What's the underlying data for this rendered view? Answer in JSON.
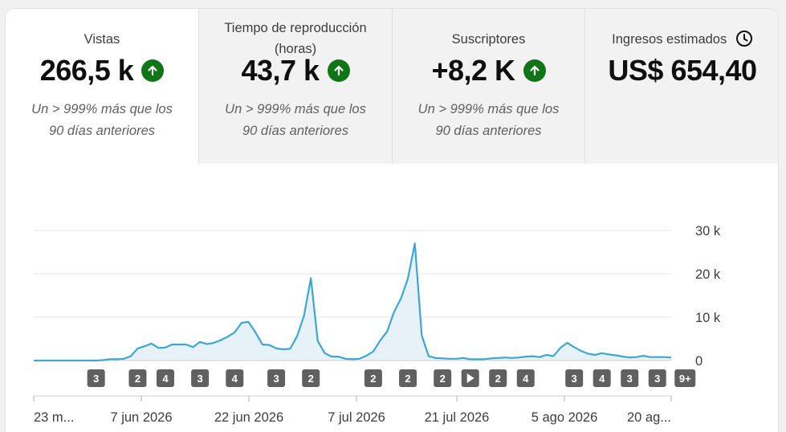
{
  "metrics": [
    {
      "label": "Vistas",
      "value": "266,5 k",
      "comparison": "Un > 999% más que los 90 días anteriores",
      "comparison_line1": "Un > 999% más que los",
      "comparison_line2": "90 días anteriores",
      "trend_icon": "arrow-up-icon"
    },
    {
      "label_line1": "Tiempo de reproducción",
      "label_line2": "(horas)",
      "value": "43,7 k",
      "comparison_line1": "Un > 999% más que los",
      "comparison_line2": "90 días anteriores",
      "trend_icon": "arrow-up-icon"
    },
    {
      "label": "Suscriptores",
      "value": "+8,2 K",
      "comparison_line1": "Un > 999% más que los",
      "comparison_line2": "90 días anteriores",
      "trend_icon": "arrow-up-icon"
    },
    {
      "label": "Ingresos estimados",
      "value": "US$ 654,40",
      "info_icon": "clock-icon"
    }
  ],
  "colors": {
    "line": "#3ea6d3",
    "fill": "#e6f1f8",
    "up": "#107516",
    "badge": "#606060"
  },
  "chart_data": {
    "type": "area",
    "x_ticks": [
      "23 m...",
      "7 jun 2026",
      "22 jun 2026",
      "7 jul 2026",
      "21 jul 2026",
      "5 ago 2026",
      "20 ag..."
    ],
    "y_ticks": [
      "0",
      "10 k",
      "20 k",
      "30 k"
    ],
    "ylim": [
      0,
      30000
    ],
    "xlabel": "",
    "ylabel": "",
    "grid": true,
    "series": [
      {
        "values": [
          0,
          0,
          0,
          0,
          0,
          0,
          0,
          0,
          0,
          0,
          100,
          300,
          300,
          400,
          1000,
          2800,
          3300,
          3900,
          2900,
          3000,
          3700,
          3700,
          3700,
          3100,
          4300,
          3800,
          4100,
          4700,
          5500,
          6500,
          8700,
          8900,
          6500,
          3700,
          3600,
          2800,
          2600,
          2700,
          5600,
          10300,
          19000,
          4500,
          1700,
          900,
          900,
          400,
          300,
          400,
          1100,
          2100,
          4600,
          6700,
          11200,
          14300,
          18900,
          27000,
          5800,
          1000,
          600,
          500,
          400,
          400,
          600,
          300,
          300,
          300,
          500,
          600,
          700,
          600,
          700,
          900,
          1000,
          800,
          1300,
          1000,
          2900,
          4100,
          3100,
          2200,
          1600,
          1300,
          1700,
          1400,
          1200,
          900,
          700,
          800,
          1100,
          800,
          800,
          800,
          700
        ]
      }
    ],
    "markers": [
      {
        "day": 9,
        "label": "3"
      },
      {
        "day": 15,
        "label": "2"
      },
      {
        "day": 19,
        "label": "4"
      },
      {
        "day": 24,
        "label": "3"
      },
      {
        "day": 29,
        "label": "4"
      },
      {
        "day": 35,
        "label": "3"
      },
      {
        "day": 40,
        "label": "2"
      },
      {
        "day": 49,
        "label": "2"
      },
      {
        "day": 54,
        "label": "2"
      },
      {
        "day": 59,
        "label": "2"
      },
      {
        "day": 63,
        "label": "",
        "icon": "play-icon"
      },
      {
        "day": 67,
        "label": "2"
      },
      {
        "day": 71,
        "label": "4"
      },
      {
        "day": 78,
        "label": "3"
      },
      {
        "day": 82,
        "label": "4"
      },
      {
        "day": 86,
        "label": "3"
      },
      {
        "day": 90,
        "label": "3"
      },
      {
        "day": 94,
        "label": "9+"
      }
    ]
  }
}
